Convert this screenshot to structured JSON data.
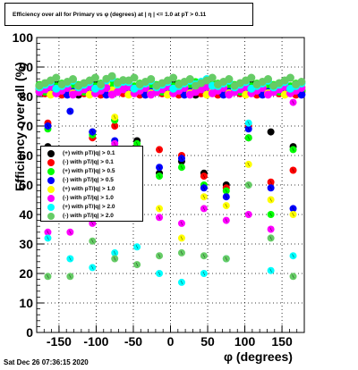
{
  "chart_data": {
    "type": "scatter",
    "title": "Efficiency over all for Primary vs φ (degrees) at | η | <= 1.0 at pT > 0.11",
    "xlabel": "φ (degrees)",
    "ylabel": "Efficiency over all (%)",
    "xlim": [
      -180,
      180
    ],
    "ylim": [
      0,
      100
    ],
    "xticks": [
      -150,
      -100,
      -50,
      0,
      50,
      100,
      150
    ],
    "yticks": [
      0,
      10,
      20,
      30,
      40,
      50,
      60,
      70,
      80,
      90,
      100
    ],
    "grid": true,
    "legend_position": "middle-left",
    "x": [
      -165,
      -135,
      -105,
      -75,
      -45,
      -15,
      15,
      45,
      75,
      105,
      135,
      165
    ],
    "series": [
      {
        "name": "(+) with pT/|q| > 0.1",
        "color": "#000000",
        "values": [
          63,
          62,
          68,
          72,
          65,
          54,
          58,
          54,
          50,
          66,
          68,
          63
        ],
        "upper": [
          83,
          82,
          83,
          83,
          82,
          83,
          83,
          82,
          83,
          83,
          83,
          82
        ]
      },
      {
        "name": "(-) with pT/|q| > 0.1",
        "color": "#ff0000",
        "values": [
          71,
          61,
          66,
          70,
          63,
          62,
          60,
          53,
          49,
          70,
          51,
          55
        ],
        "upper": [
          82,
          82,
          82,
          82,
          82,
          82,
          82,
          82,
          82,
          82,
          82,
          82
        ]
      },
      {
        "name": "(+) with pT/|q| > 0.5",
        "color": "#00ff00",
        "values": [
          69,
          61,
          67,
          72,
          64,
          53,
          56,
          50,
          48,
          66,
          40,
          62
        ],
        "upper": [
          83,
          83,
          83,
          84,
          83,
          83,
          83,
          84,
          83,
          83,
          83,
          83
        ]
      },
      {
        "name": "(-) with pT/|q| > 0.5",
        "color": "#0000ff",
        "values": [
          70,
          75,
          68,
          65,
          57,
          56,
          59,
          49,
          46,
          69,
          49,
          42
        ],
        "upper": [
          82,
          82,
          82,
          82,
          82,
          82,
          82,
          82,
          82,
          82,
          82,
          82
        ]
      },
      {
        "name": "(+) with pT/|q| > 1.0",
        "color": "#ffff00",
        "values": [
          55,
          58,
          62,
          73,
          56,
          42,
          32,
          46,
          43,
          57,
          45,
          40
        ],
        "upper": [
          82,
          82,
          82,
          83,
          82,
          82,
          82,
          82,
          82,
          82,
          82,
          82
        ]
      },
      {
        "name": "(-) with pT/|q| > 1.0",
        "color": "#ff00ff",
        "values": [
          34,
          34,
          37,
          64,
          57,
          39,
          37,
          42,
          38,
          40,
          35,
          78
        ],
        "upper": [
          82,
          82,
          82,
          82,
          82,
          82,
          82,
          82,
          82,
          82,
          82,
          82
        ]
      },
      {
        "name": "(+) with pT/|q| > 2.0",
        "color": "#00ffff",
        "values": [
          32,
          25,
          22,
          27,
          29,
          20,
          17,
          20,
          25,
          71,
          21,
          26
        ],
        "upper": [
          84,
          84,
          84,
          85,
          84,
          84,
          84,
          85,
          84,
          84,
          84,
          84
        ]
      },
      {
        "name": "(-) with pT/|q| > 2.0",
        "color": "#66cc66",
        "values": [
          19,
          19,
          31,
          25,
          23,
          26,
          27,
          26,
          25,
          50,
          32,
          19
        ],
        "upper": [
          85,
          85,
          85,
          86,
          85,
          85,
          85,
          85,
          85,
          85,
          85,
          85
        ]
      }
    ]
  },
  "footer": {
    "timestamp": "Sat Dec 26 07:36:15 2020"
  }
}
